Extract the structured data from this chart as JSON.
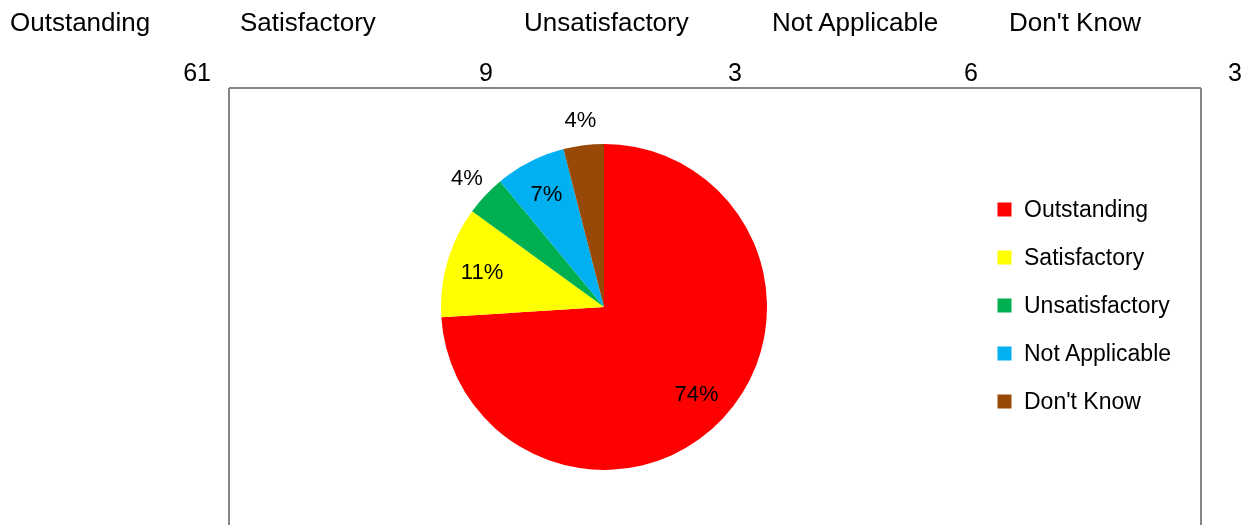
{
  "chart_data": {
    "type": "pie",
    "categories": [
      "Outstanding",
      "Satisfactory",
      "Unsatisfactory",
      "Not Applicable",
      "Don't Know"
    ],
    "values": [
      74,
      11,
      4,
      7,
      4
    ],
    "colors": [
      "#ff0000",
      "#ffff00",
      "#00b050",
      "#00b0f0",
      "#984807"
    ],
    "value_labels": [
      "74%",
      "11%",
      "4%",
      "7%",
      "4%"
    ],
    "annotations": [
      "61",
      "9",
      "3",
      "6",
      "3"
    ],
    "legend": "right"
  }
}
